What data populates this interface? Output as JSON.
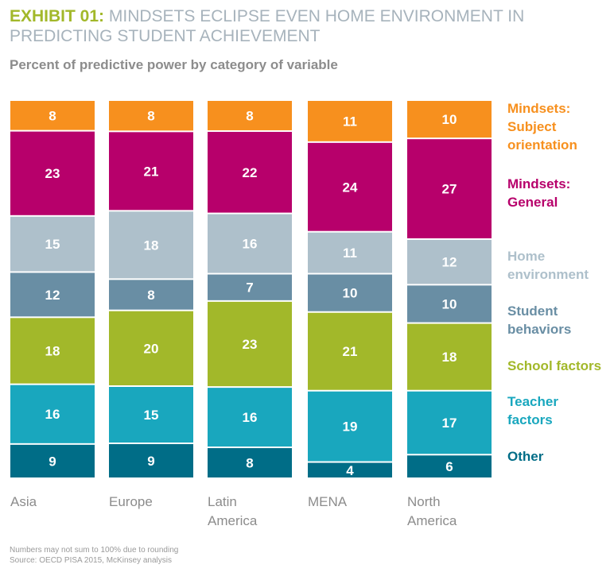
{
  "title": {
    "lead": "EXHIBIT 01:",
    "rest": " MINDSETS ECLIPSE EVEN HOME ENVIRONMENT IN PREDICTING STUDENT ACHIEVEMENT"
  },
  "subtitle": "Percent of predictive power by category of variable",
  "notes": {
    "line1": "Numbers may not sum to 100% due to rounding",
    "line2": "Source: OECD PISA 2015, McKinsey analysis"
  },
  "chart_data": {
    "type": "bar",
    "stacked": true,
    "title": "Percent of predictive power by category of variable",
    "categories": [
      "Asia",
      "Europe",
      "Latin America",
      "MENA",
      "North America"
    ],
    "category_lines": [
      [
        "Asia"
      ],
      [
        "Europe"
      ],
      [
        "Latin",
        "America"
      ],
      [
        "MENA"
      ],
      [
        "North",
        "America"
      ]
    ],
    "series": [
      {
        "name": "Other",
        "lines": [
          "Other"
        ],
        "color": "#006d87",
        "values": [
          9,
          9,
          8,
          4,
          6
        ]
      },
      {
        "name": "Teacher factors",
        "lines": [
          "Teacher",
          "factors"
        ],
        "color": "#19a7be",
        "values": [
          16,
          15,
          16,
          19,
          17
        ]
      },
      {
        "name": "School factors",
        "lines": [
          "School factors"
        ],
        "color": "#a2b82a",
        "values": [
          18,
          20,
          23,
          21,
          18
        ]
      },
      {
        "name": "Student behaviors",
        "lines": [
          "Student",
          "behaviors"
        ],
        "color": "#698ea4",
        "values": [
          12,
          8,
          7,
          10,
          10
        ]
      },
      {
        "name": "Home environment",
        "lines": [
          "Home",
          "environment"
        ],
        "color": "#aec0cb",
        "values": [
          15,
          18,
          16,
          11,
          12
        ]
      },
      {
        "name": "Mindsets: General",
        "lines": [
          "Mindsets:",
          "General"
        ],
        "color": "#b7006b",
        "values": [
          23,
          21,
          22,
          24,
          27
        ]
      },
      {
        "name": "Mindsets: Subject orientation",
        "lines": [
          "Mindsets:",
          "Subject",
          "orientation"
        ],
        "color": "#f7901e",
        "values": [
          8,
          8,
          8,
          11,
          10
        ]
      }
    ],
    "legend_position": "right",
    "grid": false
  }
}
